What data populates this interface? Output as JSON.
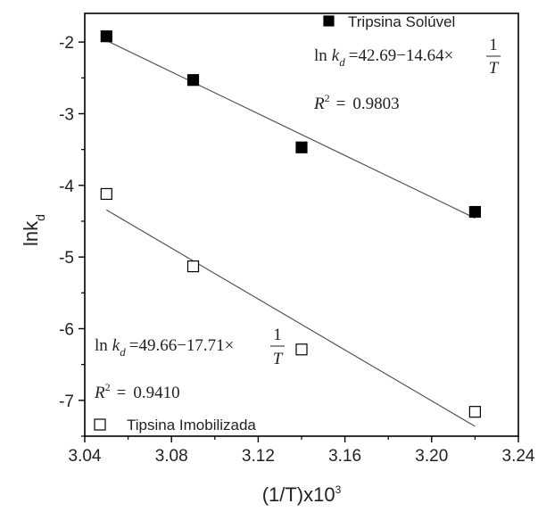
{
  "chart_data": {
    "type": "scatter",
    "xlabel": "(1/T)x10",
    "xlabel_sup": "3",
    "ylabel": "lnk",
    "ylabel_sub": "d",
    "xlim": [
      3.04,
      3.24
    ],
    "ylim": [
      -7.5,
      -1.6
    ],
    "xticks": [
      "3.04",
      "3.08",
      "3.12",
      "3.16",
      "3.20",
      "3.24"
    ],
    "yticks": [
      "-2",
      "-3",
      "-4",
      "-5",
      "-6",
      "-7"
    ],
    "grid": false,
    "series": [
      {
        "name": "Tripsina Solúvel",
        "marker": "filled-square",
        "color": "#000000",
        "x": [
          3.05,
          3.09,
          3.14,
          3.22
        ],
        "y": [
          -1.92,
          -2.53,
          -3.47,
          -4.37
        ],
        "fit": {
          "intercept": 42.69,
          "slope": -14.64,
          "r2_value": "0.9803"
        },
        "equation": {
          "a": "42.69",
          "b": "14.64",
          "r2": "0.9803"
        }
      },
      {
        "name": "Tipsina Imobilizada",
        "marker": "open-square",
        "color": "#000000",
        "x": [
          3.05,
          3.09,
          3.14,
          3.22
        ],
        "y": [
          -4.12,
          -5.13,
          -6.29,
          -7.16
        ],
        "fit": {
          "intercept": 49.66,
          "slope": -17.71,
          "r2_value": "0.9410"
        },
        "equation": {
          "a": "49.66",
          "b": "17.71",
          "r2": "0.9410"
        }
      }
    ],
    "equation_text": {
      "ln": "ln",
      "k": "k",
      "sub": "d",
      "eq": "=",
      "minus": "−",
      "times": "×",
      "one": "1",
      "T": "T",
      "R": "R",
      "two": "2"
    }
  }
}
